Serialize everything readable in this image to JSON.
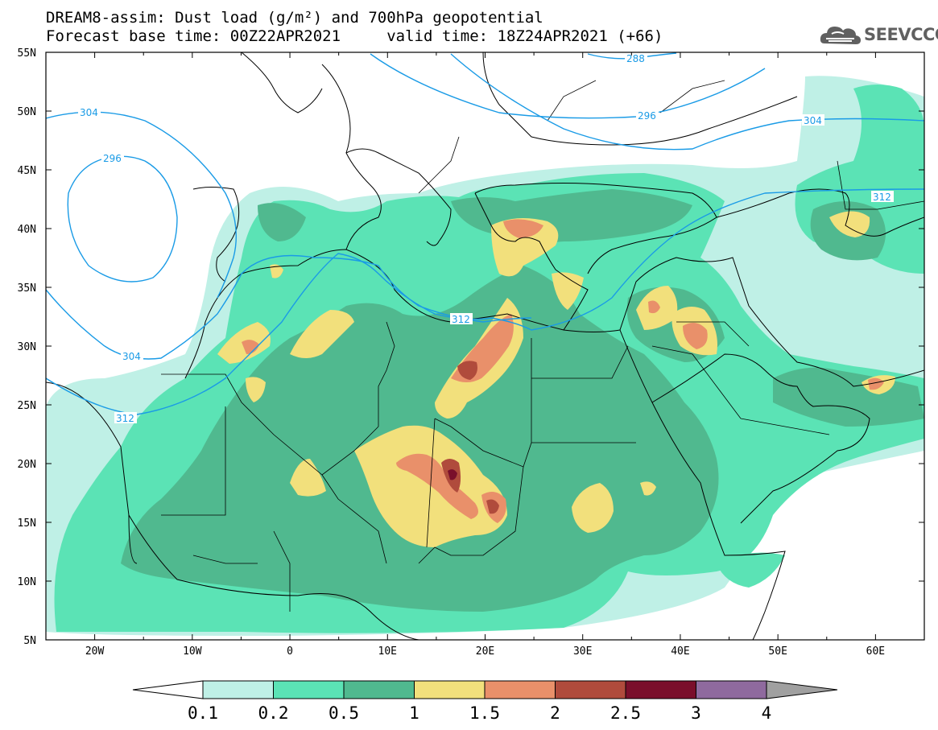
{
  "title": {
    "line1": "DREAM8-assim: Dust load (g/m²) and 700hPa geopotential",
    "line2": "Forecast base time: 00Z22APR2021     valid time: 18Z24APR2021 (+66)"
  },
  "logo": {
    "icon": "cloud-icon",
    "text": "SEEVCCC"
  },
  "axes": {
    "lon_labels": [
      "20W",
      "10W",
      "0",
      "10E",
      "20E",
      "30E",
      "40E",
      "50E",
      "60E"
    ],
    "lat_labels": [
      "55N",
      "50N",
      "45N",
      "40N",
      "35N",
      "30N",
      "25N",
      "20N",
      "15N",
      "10N",
      "5N"
    ],
    "lon_range": [
      -25,
      65
    ],
    "lat_range": [
      5,
      55
    ]
  },
  "contours": {
    "color": "#1a9be6",
    "labels": [
      "288",
      "296",
      "304",
      "296",
      "304",
      "304",
      "312",
      "312",
      "312"
    ]
  },
  "colorbar": {
    "labels": [
      "0.1",
      "0.2",
      "0.5",
      "1",
      "1.5",
      "2",
      "2.5",
      "3",
      "4"
    ],
    "colors": [
      "#bff0e6",
      "#5be3b5",
      "#50b98f",
      "#f2e07c",
      "#e9906a",
      "#b04b3c",
      "#7a0f2b",
      "#8f6a9e",
      "#a0a0a0"
    ]
  },
  "dust_colors": {
    "level1": "#bff0e6",
    "level2": "#5be3b5",
    "level3": "#50b98f",
    "level4": "#f2e07c",
    "level5": "#e9906a",
    "level6": "#b04b3c",
    "level7": "#7a0f2b"
  }
}
